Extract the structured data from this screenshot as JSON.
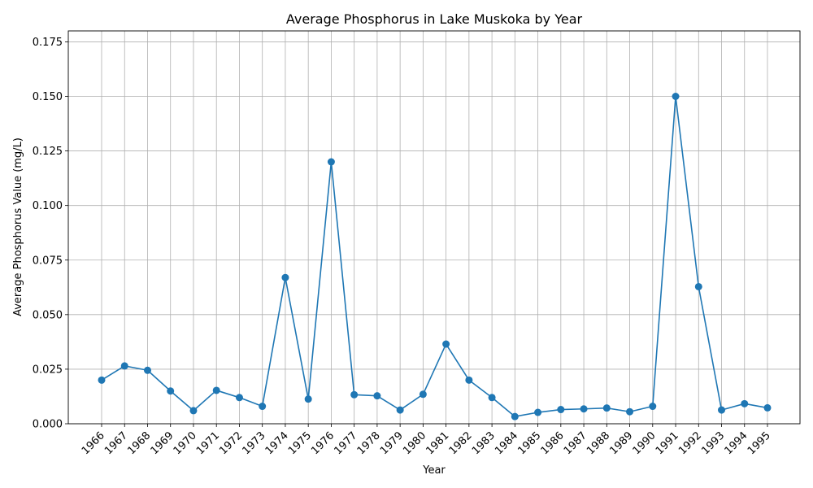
{
  "chart_data": {
    "type": "line",
    "title": "Average Phosphorus in Lake Muskoka by Year",
    "xlabel": "Year",
    "ylabel": "Average Phosphorus Value (mg/L)",
    "categories": [
      "1966",
      "1967",
      "1968",
      "1969",
      "1970",
      "1971",
      "1972",
      "1973",
      "1974",
      "1975",
      "1976",
      "1977",
      "1978",
      "1979",
      "1980",
      "1981",
      "1982",
      "1983",
      "1984",
      "1985",
      "1986",
      "1987",
      "1988",
      "1989",
      "1990",
      "1991",
      "1992",
      "1993",
      "1994",
      "1995"
    ],
    "values": [
      0.02,
      0.0265,
      0.0245,
      0.015,
      0.006,
      0.0153,
      0.012,
      0.008,
      0.067,
      0.0113,
      0.12,
      0.0133,
      0.0128,
      0.0063,
      0.0135,
      0.0365,
      0.02,
      0.012,
      0.0033,
      0.0052,
      0.0065,
      0.0068,
      0.0072,
      0.0055,
      0.008,
      0.15,
      0.0628,
      0.0063,
      0.0092,
      0.0073
    ],
    "ylim": [
      0,
      0.18
    ],
    "yticks": [
      "0.000",
      "0.025",
      "0.050",
      "0.075",
      "0.100",
      "0.125",
      "0.150",
      "0.175"
    ],
    "grid": true,
    "colors": {
      "line": "#1f77b4"
    }
  }
}
